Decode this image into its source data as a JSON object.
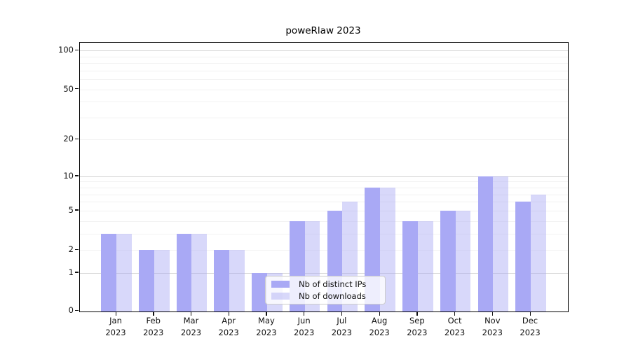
{
  "chart_data": {
    "type": "bar",
    "title": "poweRlaw 2023",
    "categories": [
      "Jan",
      "Feb",
      "Mar",
      "Apr",
      "May",
      "Jun",
      "Jul",
      "Aug",
      "Sep",
      "Oct",
      "Nov",
      "Dec"
    ],
    "x_year": "2023",
    "series": [
      {
        "name": "Nb of distinct IPs",
        "color": "#a9a9f5",
        "values": [
          3,
          2,
          3,
          2,
          1,
          4,
          5,
          8,
          4,
          5,
          10,
          6
        ]
      },
      {
        "name": "Nb of downloads",
        "color": "rgba(169,169,245,0.45)",
        "values": [
          3,
          2,
          3,
          2,
          1,
          4,
          6,
          8,
          4,
          5,
          10,
          7
        ]
      }
    ],
    "xlabel": "",
    "ylabel": "",
    "y_scale": "log1p",
    "y_ticks": [
      0,
      1,
      2,
      5,
      10,
      20,
      50,
      100
    ],
    "ylim": [
      0,
      115
    ],
    "grid": {
      "orientation": "horizontal",
      "minor_lines": [
        2,
        3,
        4,
        5,
        6,
        7,
        8,
        9,
        20,
        30,
        40,
        50,
        60,
        70,
        80,
        90
      ],
      "major_lines": [
        1,
        10,
        100
      ]
    },
    "legend_position": "lower center inside plot"
  }
}
